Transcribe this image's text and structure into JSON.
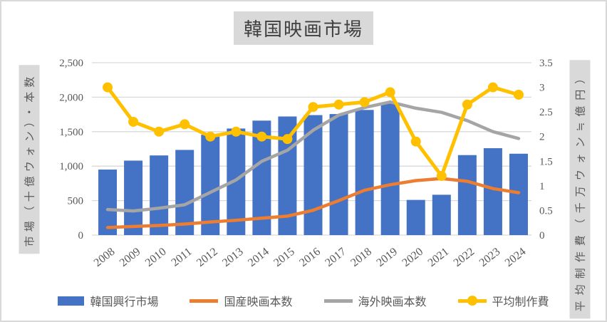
{
  "chart_data": {
    "type": "combo",
    "title": "韓国映画市場",
    "categories": [
      "2008",
      "2009",
      "2010",
      "2011",
      "2012",
      "2013",
      "2014",
      "2015",
      "2016",
      "2017",
      "2018",
      "2019",
      "2020",
      "2021",
      "2022",
      "2023",
      "2024"
    ],
    "y_left": {
      "label": "市場（十億ウォン）・本数",
      "min": 0,
      "max": 2500,
      "ticks": [
        "0",
        "500",
        "1,000",
        "1,500",
        "2,000",
        "2,500"
      ]
    },
    "y_right": {
      "label": "平均制作費（千万ウォン≒億円）",
      "min": 0,
      "max": 3.5,
      "ticks": [
        "0",
        "0.5",
        "1",
        "1.5",
        "2",
        "2.5",
        "3",
        "3.5"
      ]
    },
    "grid": true,
    "legend_position": "bottom",
    "series": [
      {
        "name": "韓国興行市場",
        "type": "bar",
        "axis": "left",
        "color": "#4472C4",
        "values": [
          950,
          1080,
          1155,
          1235,
          1455,
          1545,
          1660,
          1720,
          1740,
          1755,
          1815,
          1920,
          510,
          585,
          1160,
          1260,
          1180
        ]
      },
      {
        "name": "国産映画本数",
        "type": "line",
        "axis": "left",
        "color": "#ED7D31",
        "values": [
          110,
          125,
          140,
          160,
          190,
          215,
          245,
          275,
          360,
          500,
          650,
          730,
          790,
          820,
          780,
          675,
          615
        ]
      },
      {
        "name": "海外映画本数",
        "type": "line",
        "axis": "left",
        "color": "#A5A5A5",
        "values": [
          370,
          350,
          390,
          440,
          620,
          800,
          1070,
          1230,
          1520,
          1740,
          1850,
          1930,
          1840,
          1780,
          1660,
          1500,
          1400
        ]
      },
      {
        "name": "平均制作費",
        "type": "line-marker",
        "axis": "right",
        "color": "#FFC000",
        "values": [
          3.0,
          2.3,
          2.1,
          2.25,
          2.0,
          2.1,
          2.0,
          1.95,
          2.6,
          2.65,
          2.7,
          2.9,
          1.9,
          1.2,
          2.65,
          3.0,
          2.85
        ]
      }
    ]
  }
}
